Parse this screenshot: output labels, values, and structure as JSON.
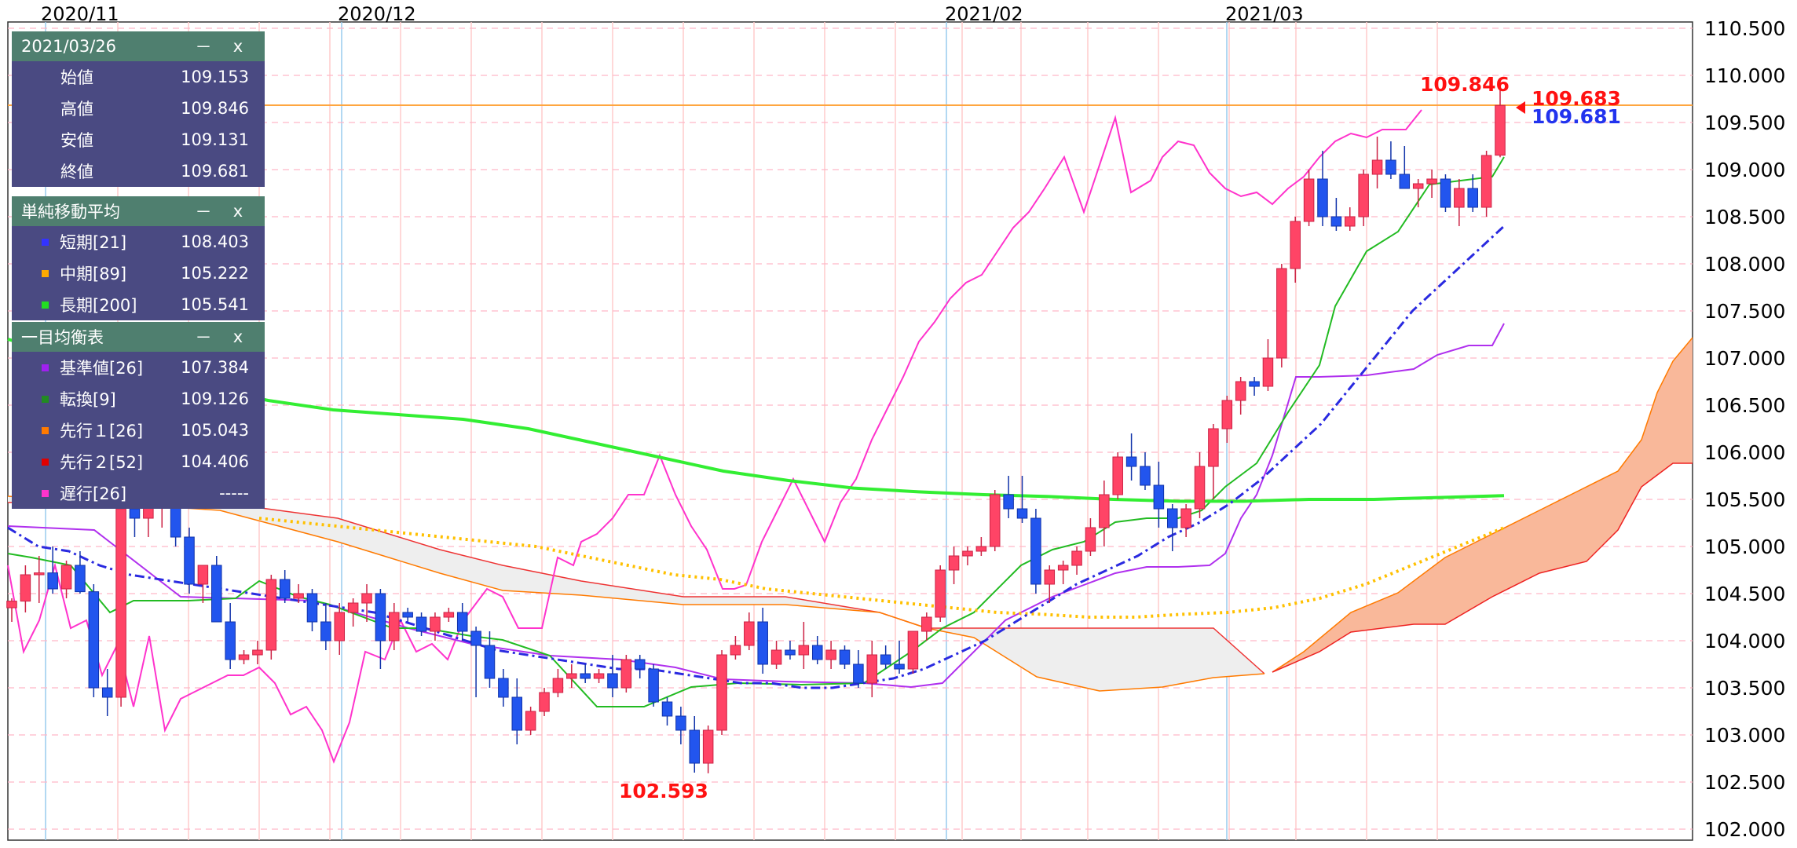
{
  "chart_data": {
    "type": "candlestick",
    "x_ticks": [
      "2020/11",
      "2020/12",
      "2021/02",
      "2021/03"
    ],
    "y_ticks": [
      "110.500",
      "110.000",
      "109.500",
      "109.000",
      "108.500",
      "108.000",
      "107.500",
      "107.000",
      "106.500",
      "106.000",
      "105.500",
      "105.000",
      "104.500",
      "104.000",
      "103.500",
      "103.000",
      "102.500",
      "102.000"
    ],
    "ylim": [
      102.0,
      110.6
    ],
    "grid": true,
    "annotations": {
      "high_label": "109.846",
      "low_label": "102.593",
      "price_red": "109.683",
      "price_blue": "109.681"
    },
    "current_price_line": 109.683,
    "candles": [
      [
        104.35,
        104.45,
        104.2,
        104.42
      ],
      [
        104.42,
        104.8,
        104.3,
        104.7
      ],
      [
        104.7,
        104.9,
        104.4,
        104.72
      ],
      [
        104.72,
        105.0,
        104.5,
        104.55
      ],
      [
        104.55,
        104.85,
        104.45,
        104.8
      ],
      [
        104.8,
        104.95,
        104.5,
        104.52
      ],
      [
        104.52,
        104.6,
        103.4,
        103.5
      ],
      [
        103.5,
        103.7,
        103.2,
        103.4
      ],
      [
        103.4,
        105.5,
        103.3,
        105.4
      ],
      [
        105.4,
        105.6,
        105.1,
        105.3
      ],
      [
        105.3,
        105.5,
        105.1,
        105.45
      ],
      [
        105.45,
        105.6,
        105.2,
        105.5
      ],
      [
        105.5,
        105.7,
        105.0,
        105.1
      ],
      [
        105.1,
        105.2,
        104.5,
        104.6
      ],
      [
        104.6,
        104.8,
        104.4,
        104.8
      ],
      [
        104.8,
        104.9,
        104.2,
        104.2
      ],
      [
        104.2,
        104.4,
        103.7,
        103.8
      ],
      [
        103.8,
        103.9,
        103.75,
        103.85
      ],
      [
        103.85,
        104.0,
        103.75,
        103.9
      ],
      [
        103.9,
        104.7,
        103.8,
        104.65
      ],
      [
        104.65,
        104.75,
        104.4,
        104.45
      ],
      [
        104.45,
        104.6,
        104.4,
        104.5
      ],
      [
        104.5,
        104.55,
        104.1,
        104.2
      ],
      [
        104.2,
        104.4,
        103.9,
        104.0
      ],
      [
        104.0,
        104.4,
        103.85,
        104.3
      ],
      [
        104.3,
        104.45,
        104.15,
        104.4
      ],
      [
        104.4,
        104.6,
        104.2,
        104.5
      ],
      [
        104.5,
        104.55,
        103.7,
        104.0
      ],
      [
        104.0,
        104.4,
        103.9,
        104.3
      ],
      [
        104.3,
        104.35,
        104.2,
        104.25
      ],
      [
        104.25,
        104.3,
        104.05,
        104.1
      ],
      [
        104.1,
        104.3,
        104.0,
        104.25
      ],
      [
        104.25,
        104.35,
        104.2,
        104.3
      ],
      [
        104.3,
        104.4,
        104.0,
        104.1
      ],
      [
        104.1,
        104.15,
        103.4,
        103.95
      ],
      [
        103.95,
        104.1,
        103.5,
        103.6
      ],
      [
        103.6,
        103.7,
        103.3,
        103.4
      ],
      [
        103.4,
        103.6,
        102.9,
        103.05
      ],
      [
        103.05,
        103.3,
        103.0,
        103.25
      ],
      [
        103.25,
        103.5,
        103.2,
        103.45
      ],
      [
        103.45,
        103.7,
        103.4,
        103.6
      ],
      [
        103.6,
        103.75,
        103.5,
        103.65
      ],
      [
        103.65,
        103.75,
        103.55,
        103.6
      ],
      [
        103.6,
        103.7,
        103.55,
        103.65
      ],
      [
        103.65,
        103.85,
        103.4,
        103.5
      ],
      [
        103.5,
        103.85,
        103.45,
        103.8
      ],
      [
        103.8,
        103.85,
        103.6,
        103.7
      ],
      [
        103.7,
        103.75,
        103.3,
        103.35
      ],
      [
        103.35,
        103.4,
        103.1,
        103.2
      ],
      [
        103.2,
        103.3,
        102.9,
        103.05
      ],
      [
        103.05,
        103.2,
        102.6,
        102.7
      ],
      [
        102.7,
        103.1,
        102.593,
        103.05
      ],
      [
        103.05,
        103.9,
        103.0,
        103.85
      ],
      [
        103.85,
        104.05,
        103.8,
        103.95
      ],
      [
        103.95,
        104.3,
        103.9,
        104.2
      ],
      [
        104.2,
        104.35,
        103.65,
        103.75
      ],
      [
        103.75,
        104.0,
        103.7,
        103.9
      ],
      [
        103.9,
        104.0,
        103.8,
        103.85
      ],
      [
        103.85,
        104.2,
        103.7,
        103.95
      ],
      [
        103.95,
        104.05,
        103.75,
        103.8
      ],
      [
        103.8,
        104.0,
        103.7,
        103.9
      ],
      [
        103.9,
        103.95,
        103.7,
        103.75
      ],
      [
        103.75,
        103.9,
        103.5,
        103.55
      ],
      [
        103.55,
        104.0,
        103.4,
        103.85
      ],
      [
        103.85,
        103.95,
        103.7,
        103.75
      ],
      [
        103.75,
        104.0,
        103.65,
        103.7
      ],
      [
        103.7,
        104.1,
        103.65,
        104.1
      ],
      [
        104.1,
        104.3,
        104.0,
        104.25
      ],
      [
        104.25,
        104.8,
        104.2,
        104.75
      ],
      [
        104.75,
        105.0,
        104.6,
        104.9
      ],
      [
        104.9,
        105.0,
        104.8,
        104.95
      ],
      [
        104.95,
        105.1,
        104.9,
        105.0
      ],
      [
        105.0,
        105.6,
        104.95,
        105.55
      ],
      [
        105.55,
        105.75,
        105.3,
        105.4
      ],
      [
        105.4,
        105.75,
        105.25,
        105.3
      ],
      [
        105.3,
        105.4,
        104.5,
        104.6
      ],
      [
        104.6,
        104.8,
        104.4,
        104.75
      ],
      [
        104.75,
        104.85,
        104.6,
        104.8
      ],
      [
        104.8,
        105.0,
        104.7,
        104.95
      ],
      [
        104.95,
        105.3,
        104.9,
        105.2
      ],
      [
        105.2,
        105.7,
        105.0,
        105.55
      ],
      [
        105.55,
        106.0,
        105.5,
        105.95
      ],
      [
        105.95,
        106.2,
        105.7,
        105.85
      ],
      [
        105.85,
        106.0,
        105.6,
        105.65
      ],
      [
        105.65,
        105.9,
        105.2,
        105.4
      ],
      [
        105.4,
        105.45,
        104.95,
        105.2
      ],
      [
        105.2,
        105.45,
        105.1,
        105.4
      ],
      [
        105.4,
        106.0,
        105.3,
        105.85
      ],
      [
        105.85,
        106.3,
        105.5,
        106.25
      ],
      [
        106.25,
        106.6,
        106.1,
        106.55
      ],
      [
        106.55,
        106.8,
        106.4,
        106.75
      ],
      [
        106.75,
        106.8,
        106.6,
        106.7
      ],
      [
        106.7,
        107.2,
        106.65,
        107.0
      ],
      [
        107.0,
        108.0,
        106.9,
        107.95
      ],
      [
        107.95,
        108.5,
        107.8,
        108.45
      ],
      [
        108.45,
        109.0,
        108.4,
        108.9
      ],
      [
        108.9,
        109.2,
        108.4,
        108.5
      ],
      [
        108.5,
        108.7,
        108.35,
        108.4
      ],
      [
        108.4,
        108.6,
        108.35,
        108.5
      ],
      [
        108.5,
        109.0,
        108.4,
        108.95
      ],
      [
        108.95,
        109.35,
        108.8,
        109.1
      ],
      [
        109.1,
        109.3,
        108.9,
        108.95
      ],
      [
        108.95,
        109.25,
        108.8,
        108.8
      ],
      [
        108.8,
        108.9,
        108.6,
        108.85
      ],
      [
        108.85,
        109.0,
        108.7,
        108.9
      ],
      [
        108.9,
        108.95,
        108.55,
        108.6
      ],
      [
        108.6,
        108.9,
        108.4,
        108.8
      ],
      [
        108.8,
        108.95,
        108.55,
        108.6
      ],
      [
        108.6,
        109.2,
        108.5,
        109.15
      ],
      [
        109.153,
        109.846,
        109.131,
        109.681
      ]
    ],
    "series": [
      {
        "color": "#2a2ae0",
        "style": "dashdot",
        "values": [
          105.2,
          105.0,
          104.95,
          104.8,
          104.7,
          104.65,
          104.6,
          104.55,
          104.5,
          104.45,
          104.4,
          104.35,
          104.3,
          104.2,
          104.1,
          104.0,
          103.9,
          103.85,
          103.8,
          103.75,
          103.7,
          103.7,
          103.65,
          103.6,
          103.55,
          103.55,
          103.5,
          103.5,
          103.55,
          103.6,
          103.7,
          103.85,
          104.0,
          104.2,
          104.4,
          104.6,
          104.75,
          104.9,
          105.1,
          105.25,
          105.45,
          105.7,
          106.0,
          106.3,
          106.7,
          107.1,
          107.5,
          107.8,
          108.1,
          108.4
        ]
      },
      {
        "color": "#ffc000",
        "style": "dotted",
        "values": [
          105.3,
          105.25,
          105.2,
          105.15,
          105.1,
          105.05,
          105.0,
          104.9,
          104.8,
          104.7,
          104.65,
          104.55,
          104.5,
          104.45,
          104.4,
          104.35,
          104.3,
          104.28,
          104.25,
          104.25,
          104.28,
          104.3,
          104.35,
          104.45,
          104.6,
          104.8,
          105.0,
          105.2
        ]
      },
      {
        "color": "#33ee33",
        "style": "solid",
        "values": [
          107.2,
          107.0,
          106.85,
          106.7,
          106.55,
          106.45,
          106.4,
          106.35,
          106.25,
          106.1,
          105.95,
          105.8,
          105.7,
          105.62,
          105.58,
          105.55,
          105.53,
          105.5,
          105.48,
          105.48,
          105.5,
          105.5,
          105.52,
          105.54
        ]
      }
    ]
  },
  "panels": {
    "ohlc": {
      "title": "2021/03/26",
      "minimize": "－",
      "close": "x",
      "rows": [
        {
          "label": "始値",
          "value": "109.153"
        },
        {
          "label": "高値",
          "value": "109.846"
        },
        {
          "label": "安値",
          "value": "109.131"
        },
        {
          "label": "終値",
          "value": "109.681"
        }
      ]
    },
    "sma": {
      "title": "単純移動平均",
      "minimize": "－",
      "close": "x",
      "rows": [
        {
          "label": "短期[21]",
          "value": "108.403",
          "color": "#3333ff"
        },
        {
          "label": "中期[89]",
          "value": "105.222",
          "color": "#ffaa00"
        },
        {
          "label": "長期[200]",
          "value": "105.541",
          "color": "#22dd22"
        }
      ]
    },
    "ichimoku": {
      "title": "一目均衡表",
      "minimize": "－",
      "close": "x",
      "rows": [
        {
          "label": "基準値[26]",
          "value": "107.384",
          "color": "#a020f0"
        },
        {
          "label": "転換[9]",
          "value": "109.126",
          "color": "#228b22"
        },
        {
          "label": "先行１[26]",
          "value": "105.043",
          "color": "#ff7a00"
        },
        {
          "label": "先行２[52]",
          "value": "104.406",
          "color": "#e00000"
        },
        {
          "label": "遅行[26]",
          "value": "-----",
          "color": "#ff33cc"
        }
      ]
    }
  }
}
